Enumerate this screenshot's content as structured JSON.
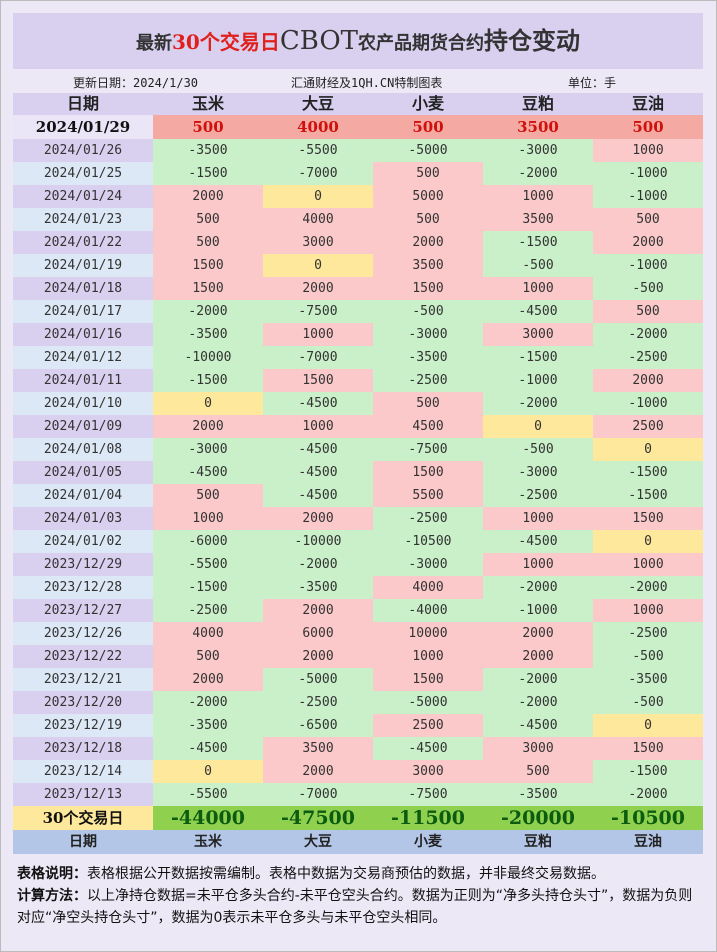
{
  "header": {
    "title": {
      "prefix": "最新",
      "highlight": "30个交易日",
      "brand": "CBOT",
      "middle": "农产品期货合约",
      "suffix": "持仓变动"
    },
    "update_date": "更新日期：2024/1/30",
    "source": "汇通财经及1QH.CN特制图表",
    "unit": "单位：手"
  },
  "table": {
    "columns": [
      "日期",
      "玉米",
      "大豆",
      "小麦",
      "豆粕",
      "豆油"
    ],
    "latest": {
      "date": "2024/01/29",
      "values": [
        500,
        4000,
        500,
        3500,
        500
      ]
    },
    "rows": [
      [
        "2024/01/26",
        -3500,
        -5500,
        -5000,
        -3000,
        1000
      ],
      [
        "2024/01/25",
        -1500,
        -7000,
        500,
        -2000,
        -1000
      ],
      [
        "2024/01/24",
        2000,
        0,
        5000,
        1000,
        -1000
      ],
      [
        "2024/01/23",
        500,
        4000,
        500,
        3500,
        500
      ],
      [
        "2024/01/22",
        500,
        3000,
        2000,
        -1500,
        2000
      ],
      [
        "2024/01/19",
        1500,
        0,
        3500,
        -500,
        -1000
      ],
      [
        "2024/01/18",
        1500,
        2000,
        1500,
        1000,
        -500
      ],
      [
        "2024/01/17",
        -2000,
        -7500,
        -500,
        -4500,
        500
      ],
      [
        "2024/01/16",
        -3500,
        1000,
        -3000,
        3000,
        -2000
      ],
      [
        "2024/01/12",
        -10000,
        -7000,
        -3500,
        -1500,
        -2500
      ],
      [
        "2024/01/11",
        -1500,
        1500,
        -2500,
        -1000,
        2000
      ],
      [
        "2024/01/10",
        0,
        -4500,
        500,
        -2000,
        -1000
      ],
      [
        "2024/01/09",
        2000,
        1000,
        4500,
        0,
        2500
      ],
      [
        "2024/01/08",
        -3000,
        -4500,
        -7500,
        -500,
        0
      ],
      [
        "2024/01/05",
        -4500,
        -4500,
        1500,
        -3000,
        -1500
      ],
      [
        "2024/01/04",
        500,
        -4500,
        5500,
        -2500,
        -1500
      ],
      [
        "2024/01/03",
        1000,
        2000,
        -2500,
        1000,
        1500
      ],
      [
        "2024/01/02",
        -6000,
        -10000,
        -10500,
        -4500,
        0
      ],
      [
        "2023/12/29",
        -5500,
        -2000,
        -3000,
        1000,
        1000
      ],
      [
        "2023/12/28",
        -1500,
        -3500,
        4000,
        -2000,
        -2000
      ],
      [
        "2023/12/27",
        -2500,
        2000,
        -4000,
        -1000,
        1000
      ],
      [
        "2023/12/26",
        4000,
        6000,
        10000,
        2000,
        -2500
      ],
      [
        "2023/12/22",
        500,
        2000,
        1000,
        2000,
        -500
      ],
      [
        "2023/12/21",
        2000,
        -5000,
        1500,
        -2000,
        -3500
      ],
      [
        "2023/12/20",
        -2000,
        -2500,
        -5000,
        -2000,
        -500
      ],
      [
        "2023/12/19",
        -3500,
        -6500,
        2500,
        -4500,
        0
      ],
      [
        "2023/12/18",
        -4500,
        3500,
        -4500,
        3000,
        1500
      ],
      [
        "2023/12/14",
        0,
        2000,
        3000,
        500,
        -1500
      ],
      [
        "2023/12/13",
        -5500,
        -7000,
        -7500,
        -3500,
        -2000
      ]
    ],
    "total": {
      "label": "30个交易日",
      "values": [
        -44000,
        -47500,
        -11500,
        -20000,
        -10500
      ]
    }
  },
  "notes": [
    {
      "label": "表格说明：",
      "text": "表格根据公开数据按需编制。表格中数据为交易商预估的数据，并非最终交易数据。"
    },
    {
      "label": "计算方法：",
      "text": "以上净持仓数据=未平仓多头合约-未平仓空头合约。数据为正则为“净多头持仓头寸”，数据为负则对应“净空头持仓头寸”，数据为0表示未平仓多头与未平仓空头相同。"
    }
  ]
}
